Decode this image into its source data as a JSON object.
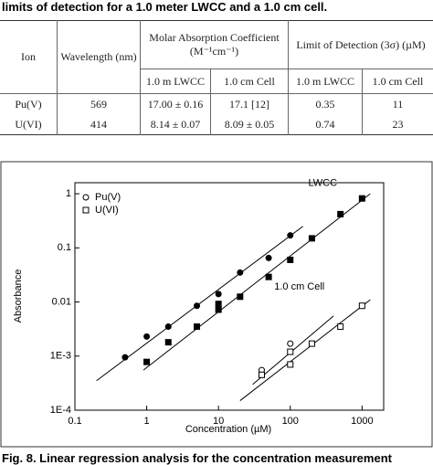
{
  "caption": "limits of detection for a 1.0 meter LWCC and a 1.0 cm cell.",
  "table": {
    "header": [
      "Ion",
      "Wavelength (nm)",
      "Molar Absorption Coefficient (M⁻¹cm⁻¹)",
      "Limit of Detection (3σ) (µM)"
    ],
    "subheader": [
      "1.0 m LWCC",
      "1.0 cm Cell",
      "1.0 m LWCC",
      "1.0 cm Cell"
    ],
    "rows": [
      [
        "Pu(V)",
        "569",
        "17.00 ± 0.16",
        "17.1 [12]",
        "0.35",
        "11"
      ],
      [
        "U(VI)",
        "414",
        "8.14 ± 0.07",
        "8.09 ± 0.05",
        "0.74",
        "23"
      ]
    ]
  },
  "chart_data": {
    "type": "scatter",
    "xlabel": "Concentration (µM)",
    "ylabel": "Absorbance",
    "log_x": true,
    "log_y": true,
    "xlim": [
      0.1,
      2000
    ],
    "ylim": [
      0.0001,
      1.6
    ],
    "xticks": [
      0.1,
      1,
      10,
      100,
      1000
    ],
    "yticks": [
      {
        "value": 0.0001,
        "label": "1E-4"
      },
      {
        "value": 0.001,
        "label": "1E-3"
      },
      0.01,
      0.1,
      1
    ],
    "legend": "upper left",
    "annotations": [
      {
        "text": "LWCC",
        "x": 450,
        "y": 0.9
      },
      {
        "text": "1.0 cm Cell",
        "x": 300,
        "y": 0.011
      }
    ],
    "series": [
      {
        "name": "Pu(V)",
        "marker": "circle",
        "color": "#000000",
        "lwcc_x": [
          0.5,
          1,
          2,
          5,
          10,
          20,
          50,
          100
        ],
        "lwcc_values": [
          0.00095,
          0.0023,
          0.0035,
          0.0085,
          0.014,
          0.035,
          0.065,
          0.17
        ],
        "cell_x": [
          40,
          100
        ],
        "cell_values": [
          0.00055,
          0.0017
        ]
      },
      {
        "name": "U(VI)",
        "marker": "square",
        "color": "#000000",
        "lwcc_x": [
          1,
          2,
          5,
          10,
          10,
          20,
          50,
          100,
          200,
          500,
          1000
        ],
        "lwcc_values": [
          0.00078,
          0.0018,
          0.0035,
          0.0072,
          0.0092,
          0.0125,
          0.029,
          0.06,
          0.15,
          0.42,
          0.82
        ],
        "cell_x": [
          40,
          100,
          100,
          200,
          500,
          1000
        ],
        "cell_values": [
          0.00045,
          0.0012,
          0.0007,
          0.0017,
          0.0035,
          0.0085
        ]
      }
    ],
    "fits": [
      {
        "x": [
          0.2,
          150
        ],
        "values": [
          0.00035,
          0.25
        ]
      },
      {
        "x": [
          0.9,
          1300
        ],
        "values": [
          0.00055,
          1
        ]
      },
      {
        "x": [
          30,
          400
        ],
        "values": [
          0.0003,
          0.0055
        ]
      },
      {
        "x": [
          20,
          1300
        ],
        "values": [
          0.00015,
          0.011
        ]
      }
    ]
  },
  "footer": "Fig. 8. Linear regression analysis for the concentration measurement"
}
